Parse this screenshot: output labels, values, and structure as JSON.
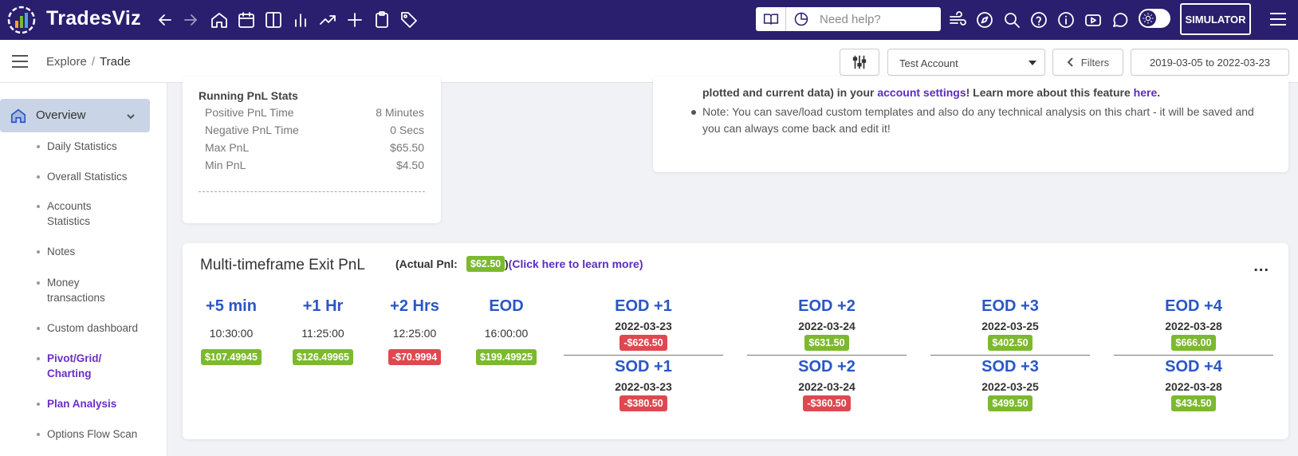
{
  "app": {
    "brand": "TradesViz"
  },
  "topbar": {
    "nav_icons": [
      "arrow-left-icon",
      "arrow-right-icon",
      "home-icon",
      "calendar-icon",
      "columns-icon",
      "bar-chart-icon",
      "trending-up-icon",
      "plus-icon",
      "clipboard-icon",
      "tag-icon"
    ],
    "help_placeholder": "Need help?",
    "right_icons": [
      "wind-icon",
      "compass-icon",
      "search-icon",
      "help-circle-icon",
      "info-icon",
      "youtube-icon",
      "chat-icon"
    ],
    "simulator_label": "SIMULATOR"
  },
  "subbar": {
    "breadcrumb": {
      "root": "Explore",
      "sep": "/",
      "current": "Trade"
    },
    "account": "Test Account",
    "filters_label": "Filters",
    "date_range": "2019-03-05 to 2022-03-23"
  },
  "sidebar": {
    "overview_label": "Overview",
    "items": [
      {
        "label": "Daily Statistics"
      },
      {
        "label": "Overall Statistics"
      },
      {
        "label": "Accounts Statistics"
      },
      {
        "label": "Notes"
      },
      {
        "label": "Money transactions"
      },
      {
        "label": "Custom dashboard"
      },
      {
        "label": "Pivot/Grid/ Charting"
      },
      {
        "label": "Plan Analysis"
      },
      {
        "label": "Options Flow Scan"
      }
    ]
  },
  "running_pnl": {
    "title": "Running PnL Stats",
    "rows": [
      {
        "label": "Positive PnL Time",
        "value": "8 Minutes"
      },
      {
        "label": "Negative PnL Time",
        "value": "0 Secs"
      },
      {
        "label": "Max PnL",
        "value": "$65.50"
      },
      {
        "label": "Min PnL",
        "value": "$4.50"
      }
    ]
  },
  "notes": {
    "line1_a": "plotted and current data) in your ",
    "line1_link": "account settings",
    "line1_b": "! Learn more about this feature ",
    "line1_link2": "here",
    "line1_c": ".",
    "bullet": "Note: You can save/load custom templates and also do any technical analysis on this chart - it will be saved and you can always come back and edit it!"
  },
  "mtf": {
    "title": "Multi-timeframe Exit PnL",
    "actual_label": "(Actual Pnl:",
    "actual_value": "$62.50",
    "learn_open": ")",
    "learn_text": "(Click here to learn more)",
    "more": "...",
    "timeframes": [
      {
        "label": "+5 min",
        "time": "10:30:00",
        "pnl": "$107.49945",
        "status": "positive"
      },
      {
        "label": "+1 Hr",
        "time": "11:25:00",
        "pnl": "$126.49965",
        "status": "positive"
      },
      {
        "label": "+2 Hrs",
        "time": "12:25:00",
        "pnl": "-$70.9994",
        "status": "negative"
      },
      {
        "label": "EOD",
        "time": "16:00:00",
        "pnl": "$199.49925",
        "status": "positive"
      }
    ],
    "days": [
      {
        "eod_label": "EOD +1",
        "eod_date": "2022-03-23",
        "eod_pnl": "-$626.50",
        "eod_status": "negative",
        "sod_label": "SOD +1",
        "sod_date": "2022-03-23",
        "sod_pnl": "-$380.50",
        "sod_status": "negative"
      },
      {
        "eod_label": "EOD +2",
        "eod_date": "2022-03-24",
        "eod_pnl": "$631.50",
        "eod_status": "positive",
        "sod_label": "SOD +2",
        "sod_date": "2022-03-24",
        "sod_pnl": "-$360.50",
        "sod_status": "negative"
      },
      {
        "eod_label": "EOD +3",
        "eod_date": "2022-03-25",
        "eod_pnl": "$402.50",
        "eod_status": "positive",
        "sod_label": "SOD +3",
        "sod_date": "2022-03-25",
        "sod_pnl": "$499.50",
        "sod_status": "positive"
      },
      {
        "eod_label": "EOD +4",
        "eod_date": "2022-03-28",
        "eod_pnl": "$666.00",
        "eod_status": "positive",
        "sod_label": "SOD +4",
        "sod_date": "2022-03-28",
        "sod_pnl": "$434.50",
        "sod_status": "positive"
      }
    ]
  },
  "colors": {
    "navbar": "#2a1e6e",
    "positive": "#7cb92f",
    "negative": "#e04850",
    "link": "#5a2dbf",
    "heading_blue": "#2a56c6"
  }
}
